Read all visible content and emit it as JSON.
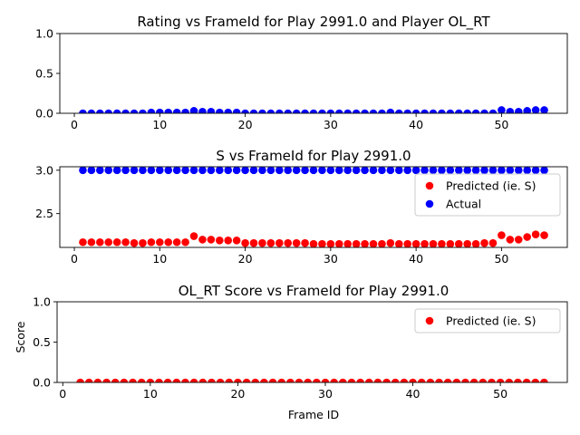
{
  "chart_data": [
    {
      "type": "scatter",
      "title": "Rating vs FrameId for Play 2991.0 and Player OL_RT",
      "xlabel": "",
      "ylabel": "",
      "xlim": [
        -1.7,
        57.7
      ],
      "ylim": [
        0,
        1.0
      ],
      "xticks": [
        "0",
        "10",
        "20",
        "30",
        "40",
        "50"
      ],
      "yticks": [
        "0.0",
        "0.5",
        "1.0"
      ],
      "legend": null,
      "series": [
        {
          "color": "#0000ff",
          "x": [
            1,
            2,
            3,
            4,
            5,
            6,
            7,
            8,
            9,
            10,
            11,
            12,
            13,
            14,
            15,
            16,
            17,
            18,
            19,
            20,
            21,
            22,
            23,
            24,
            25,
            26,
            27,
            28,
            29,
            30,
            31,
            32,
            33,
            34,
            35,
            36,
            37,
            38,
            39,
            40,
            41,
            42,
            43,
            44,
            45,
            46,
            47,
            48,
            49,
            50,
            51,
            52,
            53,
            54,
            55
          ],
          "y": [
            0,
            0,
            0,
            0,
            0,
            0,
            0,
            0,
            0.01,
            0.01,
            0.01,
            0.01,
            0.01,
            0.03,
            0.02,
            0.02,
            0.01,
            0.01,
            0.01,
            0,
            0,
            0,
            0,
            0,
            0,
            0,
            0,
            0,
            0,
            0,
            0,
            0,
            0,
            0,
            0,
            0,
            0.01,
            0,
            0,
            0,
            0,
            0,
            0,
            0,
            0,
            0,
            0,
            0,
            0,
            0.04,
            0.02,
            0.02,
            0.03,
            0.04,
            0.04
          ]
        }
      ]
    },
    {
      "type": "scatter",
      "title": "S vs FrameId for Play 2991.0",
      "xlabel": "",
      "ylabel": "",
      "xlim": [
        -1.7,
        57.7
      ],
      "ylim": [
        2.11,
        3.04
      ],
      "xticks": [
        "0",
        "10",
        "20",
        "30",
        "40",
        "50"
      ],
      "yticks": [
        "2.5",
        "3.0"
      ],
      "legend": "lower right",
      "series": [
        {
          "name": "Predicted (ie. S)",
          "color": "#ff0000",
          "x": [
            1,
            2,
            3,
            4,
            5,
            6,
            7,
            8,
            9,
            10,
            11,
            12,
            13,
            14,
            15,
            16,
            17,
            18,
            19,
            20,
            21,
            22,
            23,
            24,
            25,
            26,
            27,
            28,
            29,
            30,
            31,
            32,
            33,
            34,
            35,
            36,
            37,
            38,
            39,
            40,
            41,
            42,
            43,
            44,
            45,
            46,
            47,
            48,
            49,
            50,
            51,
            52,
            53,
            54,
            55
          ],
          "y": [
            2.17,
            2.17,
            2.17,
            2.17,
            2.17,
            2.17,
            2.16,
            2.16,
            2.17,
            2.17,
            2.17,
            2.17,
            2.17,
            2.24,
            2.2,
            2.2,
            2.19,
            2.19,
            2.19,
            2.16,
            2.16,
            2.16,
            2.16,
            2.16,
            2.16,
            2.16,
            2.16,
            2.15,
            2.15,
            2.15,
            2.15,
            2.15,
            2.15,
            2.15,
            2.15,
            2.15,
            2.16,
            2.15,
            2.15,
            2.15,
            2.15,
            2.15,
            2.15,
            2.15,
            2.15,
            2.15,
            2.15,
            2.16,
            2.16,
            2.25,
            2.2,
            2.2,
            2.23,
            2.26,
            2.25
          ]
        },
        {
          "name": "Actual",
          "color": "#0000ff",
          "x": [
            1,
            2,
            3,
            4,
            5,
            6,
            7,
            8,
            9,
            10,
            11,
            12,
            13,
            14,
            15,
            16,
            17,
            18,
            19,
            20,
            21,
            22,
            23,
            24,
            25,
            26,
            27,
            28,
            29,
            30,
            31,
            32,
            33,
            34,
            35,
            36,
            37,
            38,
            39,
            40,
            41,
            42,
            43,
            44,
            45,
            46,
            47,
            48,
            49,
            50,
            51,
            52,
            53,
            54,
            55
          ],
          "y": [
            3.0,
            3.0,
            3.0,
            3.0,
            3.0,
            3.0,
            3.0,
            3.0,
            3.0,
            3.0,
            3.0,
            3.0,
            3.0,
            3.0,
            3.0,
            3.0,
            3.0,
            3.0,
            3.0,
            3.0,
            3.0,
            3.0,
            3.0,
            3.0,
            3.0,
            3.0,
            3.0,
            3.0,
            3.0,
            3.0,
            3.0,
            3.0,
            3.0,
            3.0,
            3.0,
            3.0,
            3.0,
            3.0,
            3.0,
            3.0,
            3.0,
            3.0,
            3.0,
            3.0,
            3.0,
            3.0,
            3.0,
            3.0,
            3.0,
            3.0,
            3.0,
            3.0,
            3.0,
            3.0,
            3.0
          ]
        }
      ]
    },
    {
      "type": "scatter",
      "title": "OL_RT Score vs FrameId for Play 2991.0",
      "xlabel": "Frame ID",
      "ylabel": "Score",
      "xlim": [
        -0.65,
        57.65
      ],
      "ylim": [
        0,
        1.0
      ],
      "xticks": [
        "0",
        "10",
        "20",
        "30",
        "40",
        "50"
      ],
      "yticks": [
        "0.0",
        "0.5",
        "1.0"
      ],
      "legend": "upper right",
      "series": [
        {
          "name": "Predicted (ie. S)",
          "color": "#ff0000",
          "x": [
            2,
            3,
            4,
            5,
            6,
            7,
            8,
            9,
            10,
            11,
            12,
            13,
            14,
            15,
            16,
            17,
            18,
            19,
            20,
            21,
            22,
            23,
            24,
            25,
            26,
            27,
            28,
            29,
            30,
            31,
            32,
            33,
            34,
            35,
            36,
            37,
            38,
            39,
            40,
            41,
            42,
            43,
            44,
            45,
            46,
            47,
            48,
            49,
            50,
            51,
            52,
            53,
            54,
            55
          ],
          "y": [
            0,
            0,
            0,
            0,
            0,
            0,
            0,
            0,
            0,
            0,
            0,
            0,
            0,
            0,
            0,
            0,
            0,
            0,
            0,
            0,
            0,
            0,
            0,
            0,
            0,
            0,
            0,
            0,
            0,
            0,
            0,
            0,
            0,
            0,
            0,
            0,
            0,
            0,
            0,
            0,
            0,
            0,
            0,
            0,
            0,
            0,
            0,
            0,
            0,
            0,
            0,
            0,
            0,
            0
          ]
        }
      ]
    }
  ]
}
